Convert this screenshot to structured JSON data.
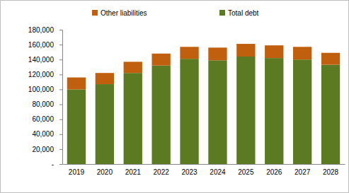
{
  "chart_data": {
    "type": "bar",
    "stacked": true,
    "legend": "top",
    "categories": [
      "2019",
      "2020",
      "2021",
      "2022",
      "2023",
      "2024",
      "2025",
      "2026",
      "2027",
      "2028"
    ],
    "series": [
      {
        "name": "Total debt",
        "color": "#5b7a22",
        "values": [
          100000,
          107000,
          122000,
          132000,
          141000,
          139000,
          144000,
          142000,
          140000,
          133000
        ]
      },
      {
        "name": "Other liabilities",
        "color": "#c0600f",
        "values": [
          16000,
          15000,
          15000,
          16000,
          16000,
          17000,
          17000,
          17000,
          17000,
          16000
        ]
      }
    ],
    "ylim": [
      0,
      180000
    ],
    "yticks": [
      {
        "value": 0,
        "label": "-"
      },
      {
        "value": 20000,
        "label": "20,000"
      },
      {
        "value": 40000,
        "label": "40,000"
      },
      {
        "value": 60000,
        "label": "60,000"
      },
      {
        "value": 80000,
        "label": "80,000"
      },
      {
        "value": 100000,
        "label": "100,000"
      },
      {
        "value": 120000,
        "label": "120,000"
      },
      {
        "value": 140000,
        "label": "140,000"
      },
      {
        "value": 160000,
        "label": "160,000"
      },
      {
        "value": 180000,
        "label": "180,000"
      }
    ],
    "grid": false
  }
}
